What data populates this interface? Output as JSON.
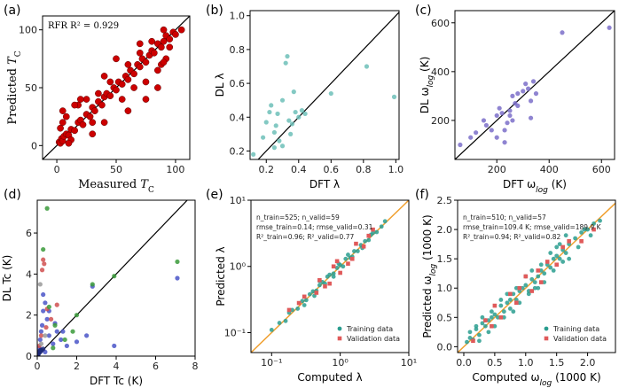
{
  "chart_data": [
    {
      "id": "a",
      "panel_label": "(a)",
      "type": "scatter",
      "xlabel": "Measured",
      "xlabel_sub": "T",
      "xlabel_subsub": "C",
      "ylabel": "Predicted",
      "ylabel_sub": "T",
      "ylabel_subsub": "C",
      "annotation": "RFR R² = 0.929",
      "xlim": [
        -12,
        112
      ],
      "ylim": [
        -12,
        112
      ],
      "xticks": [
        0,
        50,
        100
      ],
      "yticks": [
        0,
        50,
        100
      ],
      "marker_color": "#cc0000",
      "series": [
        {
          "name": "samples",
          "x": [
            2,
            3,
            4,
            5,
            6,
            8,
            10,
            12,
            15,
            18,
            20,
            22,
            25,
            28,
            30,
            32,
            35,
            38,
            40,
            42,
            45,
            48,
            50,
            52,
            55,
            58,
            60,
            62,
            65,
            68,
            70,
            72,
            75,
            78,
            80,
            82,
            85,
            88,
            90,
            92,
            95,
            98,
            100,
            3,
            5,
            8,
            12,
            18,
            25,
            30,
            35,
            40,
            45,
            55,
            60,
            65,
            70,
            75,
            80,
            85,
            88,
            90,
            92,
            10,
            15,
            20,
            60,
            70,
            75,
            85,
            90,
            95,
            30,
            40,
            50,
            5,
            105
          ],
          "y": [
            3,
            2,
            6,
            4,
            8,
            10,
            9,
            14,
            13,
            20,
            22,
            18,
            27,
            25,
            33,
            30,
            38,
            35,
            42,
            45,
            43,
            50,
            48,
            55,
            53,
            60,
            57,
            65,
            62,
            70,
            68,
            75,
            72,
            78,
            82,
            80,
            88,
            85,
            90,
            95,
            92,
            98,
            96,
            15,
            20,
            25,
            5,
            35,
            40,
            10,
            45,
            20,
            55,
            40,
            70,
            50,
            80,
            55,
            90,
            65,
            70,
            100,
            75,
            2,
            35,
            40,
            30,
            88,
            40,
            50,
            72,
            85,
            20,
            60,
            75,
            30,
            100
          ]
        }
      ],
      "diagonal": true
    },
    {
      "id": "b",
      "panel_label": "(b)",
      "type": "scatter",
      "xlabel": "DFT λ",
      "ylabel": "DL λ",
      "xlim": [
        0.1,
        1.02
      ],
      "ylim": [
        0.15,
        1.03
      ],
      "xticks": [
        0.2,
        0.4,
        0.6,
        0.8,
        1.0
      ],
      "yticks": [
        0.2,
        0.4,
        0.6,
        0.8,
        1.0
      ],
      "xtick_labels": [
        "0.2",
        "0.4",
        "0.6",
        "0.8",
        "1.0"
      ],
      "ytick_labels": [
        "0.2",
        "0.4",
        "0.6",
        "0.8",
        "1.0"
      ],
      "marker_color": "#6dbfb8",
      "series": [
        {
          "name": "samples",
          "x": [
            0.12,
            0.18,
            0.2,
            0.22,
            0.25,
            0.26,
            0.28,
            0.3,
            0.32,
            0.33,
            0.34,
            0.35,
            0.36,
            0.38,
            0.4,
            0.42,
            0.44,
            0.6,
            0.82,
            0.99,
            0.23,
            0.27,
            0.3,
            0.37,
            0.25
          ],
          "y": [
            0.18,
            0.28,
            0.37,
            0.43,
            0.31,
            0.35,
            0.26,
            0.5,
            0.72,
            0.76,
            0.38,
            0.3,
            0.36,
            0.43,
            0.4,
            0.44,
            0.42,
            0.54,
            0.7,
            0.52,
            0.47,
            0.42,
            0.23,
            0.55,
            0.22
          ]
        }
      ],
      "diagonal": true
    },
    {
      "id": "c",
      "panel_label": "(c)",
      "type": "scatter",
      "xlabel": "DFT ω",
      "xlabel_sub": "log",
      "xlabel_unit": " (K)",
      "ylabel": "DL ω",
      "ylabel_sub": "log",
      "ylabel_unit": " (K)",
      "xlim": [
        40,
        650
      ],
      "ylim": [
        40,
        650
      ],
      "xticks": [
        200,
        400,
        600
      ],
      "yticks": [
        200,
        400,
        600
      ],
      "marker_color": "#7b6fc9",
      "series": [
        {
          "name": "samples",
          "x": [
            60,
            100,
            120,
            150,
            160,
            180,
            200,
            210,
            220,
            230,
            240,
            250,
            260,
            270,
            280,
            300,
            310,
            320,
            330,
            340,
            350,
            450,
            630,
            200,
            230,
            250,
            260,
            280,
            330
          ],
          "y": [
            100,
            130,
            150,
            200,
            180,
            160,
            220,
            250,
            230,
            110,
            190,
            240,
            300,
            270,
            310,
            320,
            350,
            330,
            280,
            360,
            310,
            560,
            580,
            130,
            160,
            220,
            200,
            260,
            210
          ]
        }
      ],
      "diagonal": true
    },
    {
      "id": "d",
      "panel_label": "(d)",
      "type": "scatter",
      "xlabel": "DFT Tc (K)",
      "ylabel": "DL Tc (K)",
      "xlim": [
        0,
        8
      ],
      "ylim": [
        0,
        7.6
      ],
      "xticks": [
        0,
        2,
        4,
        6,
        8
      ],
      "yticks": [
        0,
        2,
        4,
        6
      ],
      "series": [
        {
          "name": "blue",
          "color": "#4a55c8",
          "x": [
            0.05,
            0.1,
            0.15,
            0.2,
            0.25,
            0.3,
            0.4,
            0.5,
            0.6,
            0.8,
            1.0,
            1.2,
            1.5,
            2.0,
            2.5,
            2.8,
            3.9,
            7.1,
            0.3,
            0.6,
            0.9,
            1.3,
            0.2,
            0.4
          ],
          "y": [
            0.1,
            0.4,
            0.8,
            1.2,
            1.5,
            2.2,
            2.6,
            1.8,
            1.0,
            0.6,
            1.2,
            0.8,
            0.5,
            0.7,
            1.0,
            3.4,
            0.5,
            3.8,
            3.0,
            2.2,
            1.6,
            1.2,
            0.3,
            0.2
          ]
        },
        {
          "name": "red",
          "color": "#d05050",
          "x": [
            0.1,
            0.2,
            0.3,
            0.35,
            0.5,
            0.7,
            1.0,
            0.25,
            0.45
          ],
          "y": [
            0.5,
            1.0,
            4.7,
            4.5,
            2.3,
            1.8,
            2.5,
            4.2,
            1.4
          ]
        },
        {
          "name": "green",
          "color": "#3a9a3a",
          "x": [
            0.3,
            0.5,
            0.6,
            0.9,
            1.4,
            2.0,
            2.8,
            3.9,
            7.1,
            0.8,
            1.8
          ],
          "y": [
            5.2,
            7.2,
            2.4,
            1.5,
            0.8,
            2.0,
            3.5,
            3.9,
            4.6,
            0.4,
            1.2
          ]
        },
        {
          "name": "gray",
          "color": "#999999",
          "x": [
            0.05,
            0.2,
            0.4,
            0.15
          ],
          "y": [
            0.2,
            0.6,
            1.0,
            3.5
          ]
        },
        {
          "name": "navy",
          "color": "#1f2a78",
          "x": [
            0.02,
            0.04,
            0.06,
            0.08,
            0.1,
            0.12,
            0.15,
            0.18,
            0.22,
            0.3
          ],
          "y": [
            0.02,
            0.05,
            0.1,
            0.15,
            0.2,
            0.25,
            0.2,
            0.3,
            0.28,
            0.35
          ]
        }
      ],
      "diagonal": true
    },
    {
      "id": "e",
      "panel_label": "(e)",
      "type": "scatter",
      "scale": "log",
      "xlabel": "Computed λ",
      "ylabel": "Predicted λ",
      "xlim": [
        0.05,
        10
      ],
      "ylim": [
        0.05,
        10
      ],
      "xticks": [
        0.1,
        1,
        10
      ],
      "yticks": [
        0.1,
        1,
        10
      ],
      "xtick_labels": [
        "10⁻¹",
        "10⁰",
        "10¹"
      ],
      "ytick_labels": [
        "10⁻¹",
        "10⁰",
        "10¹"
      ],
      "stats": [
        "n_train=525; n_valid=59",
        "rmse_train=0.14; rmse_valid=0.31",
        "R²_train=0.96; R²_valid=0.77"
      ],
      "legend": [
        "Training data",
        "Validation data"
      ],
      "legend_position": "bottom-right",
      "diag_color": "#f0a030",
      "series": [
        {
          "name": "Training data",
          "color": "#2a9d8f",
          "x": [
            0.1,
            0.13,
            0.16,
            0.2,
            0.24,
            0.28,
            0.32,
            0.36,
            0.4,
            0.45,
            0.5,
            0.55,
            0.6,
            0.7,
            0.8,
            0.9,
            1.0,
            1.1,
            1.2,
            1.4,
            1.6,
            1.8,
            2.0,
            2.3,
            2.6,
            3.0,
            3.4,
            4.0,
            4.5,
            0.3,
            0.5,
            0.8,
            1.3,
            2.1,
            0.18,
            0.65,
            1.5,
            2.8,
            0.42,
            0.95
          ],
          "y": [
            0.11,
            0.14,
            0.15,
            0.22,
            0.23,
            0.3,
            0.31,
            0.38,
            0.42,
            0.43,
            0.52,
            0.58,
            0.55,
            0.75,
            0.78,
            0.95,
            1.05,
            1.0,
            1.3,
            1.35,
            1.7,
            1.7,
            2.1,
            2.4,
            2.5,
            3.2,
            3.3,
            4.0,
            4.8,
            0.26,
            0.6,
            0.7,
            1.5,
            1.9,
            0.2,
            0.7,
            1.4,
            3.0,
            0.36,
            1.1
          ]
        },
        {
          "name": "Validation data",
          "color": "#e05a5a",
          "x": [
            0.18,
            0.3,
            0.45,
            0.6,
            0.8,
            1.0,
            1.3,
            1.7,
            2.2,
            3.0,
            0.5,
            0.9,
            1.5,
            0.25,
            2.6,
            0.7
          ],
          "y": [
            0.22,
            0.35,
            0.4,
            0.5,
            1.0,
            0.8,
            1.1,
            2.2,
            2.0,
            3.6,
            0.62,
            1.2,
            1.3,
            0.28,
            2.9,
            0.55
          ]
        }
      ],
      "diagonal": true
    },
    {
      "id": "f",
      "panel_label": "(f)",
      "type": "scatter",
      "xlabel": "Computed ω",
      "xlabel_sub": "log",
      "xlabel_unit": " (1000 K)",
      "ylabel": "Predicted ω",
      "ylabel_sub": "log",
      "ylabel_unit": " (1000 K)",
      "xlim": [
        -0.1,
        2.45
      ],
      "ylim": [
        -0.1,
        2.5
      ],
      "xticks": [
        0.0,
        0.5,
        1.0,
        1.5,
        2.0,
        2.5
      ],
      "yticks": [
        0.0,
        0.5,
        1.0,
        1.5,
        2.0,
        2.5
      ],
      "xtick_labels": [
        "0.0",
        "0.5",
        "1.0",
        "1.5",
        "2.0",
        "2.5"
      ],
      "ytick_labels": [
        "0.0",
        "0.5",
        "1.0",
        "1.5",
        "2.0",
        "2.5"
      ],
      "stats": [
        "n_train=510; n_valid=57",
        "rmse_train=109.4 K; rmse_valid=189.9 K",
        "R²_train=0.94; R²_valid=0.82"
      ],
      "legend": [
        "Training data",
        "Validation data"
      ],
      "legend_position": "bottom-right",
      "diag_color": "#f0a030",
      "series": [
        {
          "name": "Training data",
          "color": "#2a9d8f",
          "x": [
            0.05,
            0.1,
            0.15,
            0.2,
            0.25,
            0.3,
            0.35,
            0.4,
            0.45,
            0.5,
            0.55,
            0.6,
            0.65,
            0.7,
            0.75,
            0.8,
            0.85,
            0.9,
            0.95,
            1.0,
            1.05,
            1.1,
            1.15,
            1.2,
            1.25,
            1.3,
            1.35,
            1.4,
            1.45,
            1.5,
            1.55,
            1.6,
            1.65,
            1.7,
            1.8,
            1.9,
            2.0,
            2.1,
            2.2,
            0.3,
            0.5,
            0.7,
            0.9,
            1.1,
            1.3,
            1.5,
            1.7,
            0.4,
            0.6,
            0.8,
            1.0,
            1.2,
            1.4,
            1.6,
            1.85,
            2.05,
            0.2,
            0.45,
            0.65,
            0.85,
            1.05,
            1.25,
            1.45,
            1.65,
            0.35,
            0.75,
            1.15,
            1.55,
            0.1,
            0.25,
            1.95
          ],
          "y": [
            0.08,
            0.15,
            0.12,
            0.3,
            0.2,
            0.4,
            0.35,
            0.45,
            0.5,
            0.55,
            0.5,
            0.7,
            0.6,
            0.75,
            0.8,
            0.9,
            0.8,
            0.95,
            1.0,
            1.05,
            0.95,
            1.15,
            1.1,
            1.2,
            1.3,
            1.25,
            1.4,
            1.35,
            1.5,
            1.55,
            1.5,
            1.65,
            1.6,
            1.75,
            1.85,
            1.95,
            2.0,
            2.1,
            2.15,
            0.5,
            0.35,
            0.9,
            0.75,
            1.3,
            1.1,
            1.7,
            1.5,
            0.25,
            0.8,
            0.6,
            1.2,
            1.0,
            1.6,
            1.45,
            1.7,
            1.9,
            0.35,
            0.6,
            0.5,
            1.0,
            0.9,
            1.4,
            1.3,
            1.9,
            0.45,
            0.65,
            1.0,
            1.75,
            0.25,
            0.1,
            2.0
          ]
        },
        {
          "name": "Validation data",
          "color": "#e05a5a",
          "x": [
            0.15,
            0.35,
            0.5,
            0.6,
            0.75,
            0.9,
            1.0,
            1.1,
            1.2,
            1.35,
            1.5,
            1.7,
            1.9,
            2.1,
            0.45,
            0.85,
            1.25,
            1.6
          ],
          "y": [
            0.1,
            0.45,
            0.7,
            0.5,
            0.9,
            1.0,
            1.2,
            0.95,
            1.3,
            1.45,
            1.4,
            1.8,
            1.8,
            2.0,
            0.35,
            0.75,
            1.1,
            1.7
          ]
        }
      ],
      "diagonal": true
    }
  ]
}
